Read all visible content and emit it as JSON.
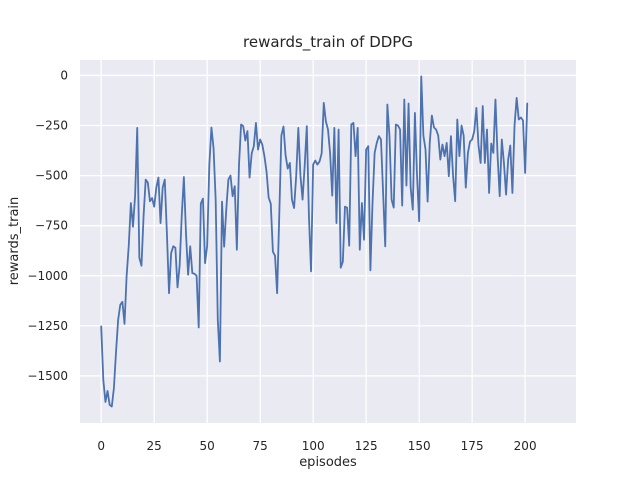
{
  "chart_data": {
    "type": "line",
    "title": "rewards_train of DDPG",
    "xlabel": "episodes",
    "ylabel": "rewards_train",
    "legend": null,
    "grid": true,
    "x_start": 0,
    "x_step": 1,
    "xlim": [
      -10,
      224
    ],
    "ylim": [
      -1735,
      77
    ],
    "xticks": [
      0,
      25,
      50,
      75,
      100,
      125,
      150,
      175,
      200
    ],
    "yticks": [
      0,
      -250,
      -500,
      -750,
      -1000,
      -1250,
      -1500
    ],
    "values": [
      -1253,
      -1520,
      -1630,
      -1575,
      -1645,
      -1653,
      -1560,
      -1380,
      -1220,
      -1145,
      -1130,
      -1240,
      -1000,
      -850,
      -637,
      -755,
      -600,
      -262,
      -910,
      -950,
      -700,
      -520,
      -535,
      -628,
      -612,
      -655,
      -560,
      -510,
      -737,
      -560,
      -520,
      -790,
      -1087,
      -887,
      -853,
      -860,
      -1058,
      -950,
      -700,
      -507,
      -787,
      -995,
      -853,
      -987,
      -990,
      -1000,
      -1258,
      -640,
      -615,
      -937,
      -850,
      -450,
      -260,
      -362,
      -620,
      -1220,
      -1428,
      -630,
      -855,
      -670,
      -520,
      -500,
      -603,
      -553,
      -870,
      -450,
      -245,
      -253,
      -325,
      -278,
      -510,
      -390,
      -353,
      -237,
      -370,
      -320,
      -345,
      -403,
      -480,
      -610,
      -640,
      -880,
      -900,
      -1087,
      -700,
      -300,
      -255,
      -400,
      -465,
      -437,
      -620,
      -662,
      -500,
      -262,
      -500,
      -620,
      -450,
      -253,
      -700,
      -978,
      -445,
      -425,
      -445,
      -430,
      -390,
      -137,
      -230,
      -270,
      -390,
      -600,
      -262,
      -737,
      -270,
      -960,
      -930,
      -655,
      -660,
      -850,
      -245,
      -237,
      -403,
      -262,
      -870,
      -637,
      -820,
      -370,
      -353,
      -973,
      -637,
      -387,
      -337,
      -303,
      -320,
      -587,
      -853,
      -145,
      -303,
      -620,
      -660,
      -245,
      -250,
      -270,
      -650,
      -120,
      -550,
      -140,
      -560,
      -670,
      -187,
      -500,
      -728,
      -5,
      -300,
      -370,
      -630,
      -337,
      -200,
      -260,
      -270,
      -300,
      -420,
      -345,
      -403,
      -337,
      -503,
      -303,
      -500,
      -628,
      -220,
      -403,
      -250,
      -300,
      -560,
      -387,
      -330,
      -320,
      -278,
      -162,
      -350,
      -437,
      -153,
      -437,
      -270,
      -587,
      -340,
      -387,
      -120,
      -400,
      -603,
      -320,
      -437,
      -595,
      -420,
      -350,
      -587,
      -250,
      -112,
      -220,
      -210,
      -225,
      -487,
      -140
    ],
    "colors": {
      "line": "#4c72b0",
      "plot_bg": "#eaeaf2",
      "grid": "#ffffff",
      "text": "#262626",
      "fig_bg": "#ffffff"
    }
  }
}
